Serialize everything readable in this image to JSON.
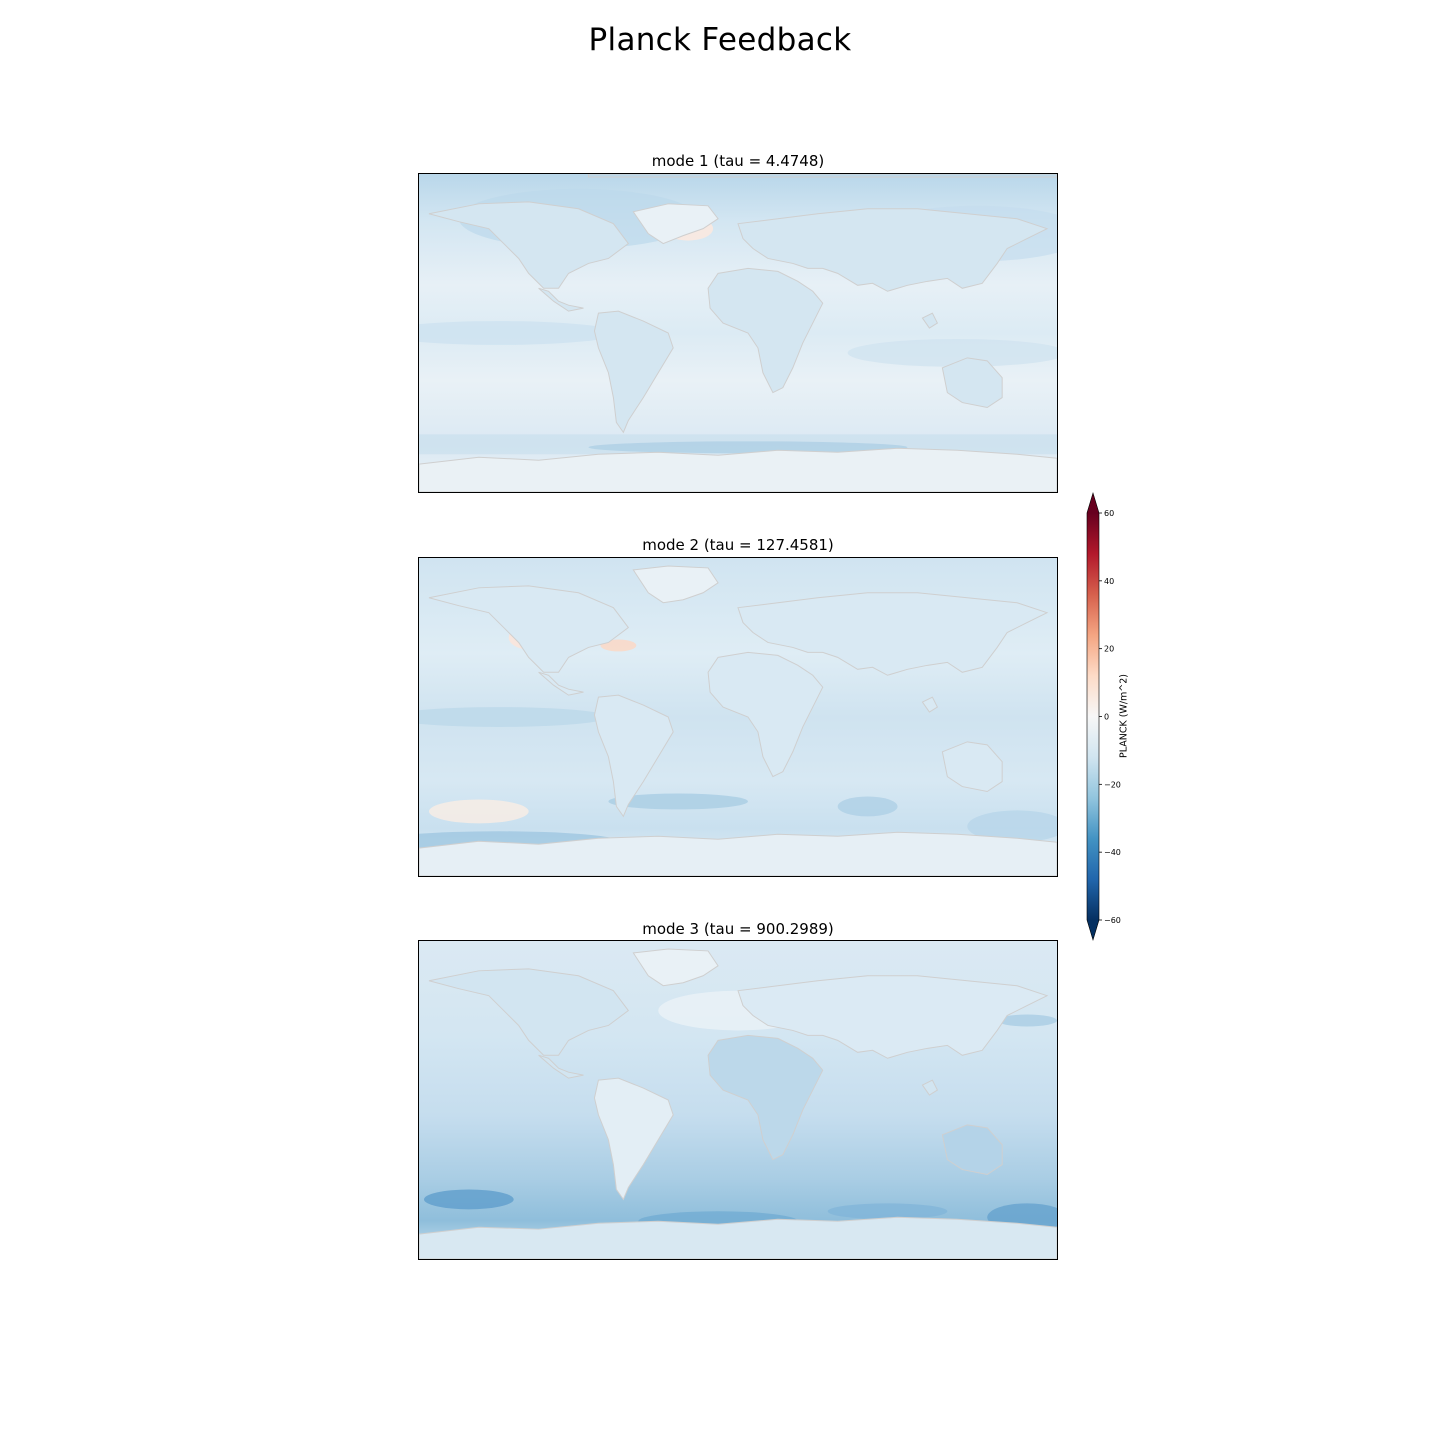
{
  "figure": {
    "title": "Planck Feedback"
  },
  "panels": [
    {
      "title": "mode 1 (tau = 4.4748)",
      "theme": "mode1"
    },
    {
      "title": "mode 2 (tau = 127.4581)",
      "theme": "mode2"
    },
    {
      "title": "mode 3 (tau = 900.2989)",
      "theme": "mode3"
    }
  ],
  "colorbar": {
    "label": "PLANCK (W/m^2)",
    "range": [
      -60,
      60
    ],
    "extend": "both",
    "ticks": [
      {
        "value": 60,
        "label": "60"
      },
      {
        "value": 40,
        "label": "40"
      },
      {
        "value": 20,
        "label": "20"
      },
      {
        "value": 0,
        "label": "0"
      },
      {
        "value": -20,
        "label": "−20"
      },
      {
        "value": -40,
        "label": "−40"
      },
      {
        "value": -60,
        "label": "−60"
      }
    ],
    "colormap": "RdBu_r",
    "colors": [
      "#053061",
      "#2166ac",
      "#4393c3",
      "#92c5de",
      "#d1e5f0",
      "#f7f7f7",
      "#fddbc7",
      "#f4a582",
      "#d6604d",
      "#b2182b",
      "#67001f"
    ]
  },
  "map_style": {
    "coastline_color": "#cfcfcf",
    "projection": "PlateCarree"
  }
}
